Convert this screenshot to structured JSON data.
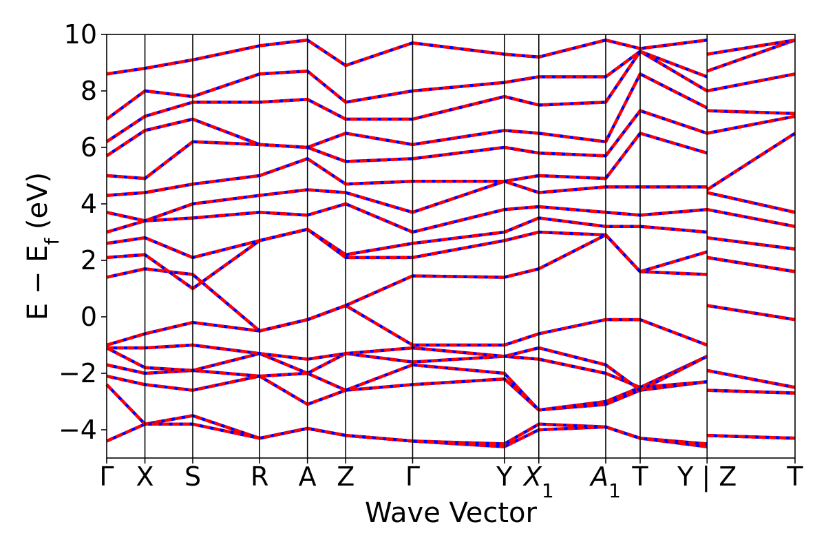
{
  "chart_data": {
    "type": "line",
    "title": "",
    "xlabel": "Wave Vector",
    "ylabel": "E − E",
    "ylabel_sub": "f",
    "ylabel_unit": " (eV)",
    "ylim": [
      -5,
      10
    ],
    "yticks": [
      -4,
      -2,
      0,
      2,
      4,
      6,
      8,
      10
    ],
    "ytick_labels": [
      "−4",
      "−2",
      "0",
      "2",
      "4",
      "6",
      "8",
      "10"
    ],
    "xlim": [
      0,
      18
    ],
    "grid": false,
    "legend": "none",
    "line_colors": {
      "primary": "#0000ff",
      "overlay": "#ff0000"
    },
    "kpoints": [
      {
        "x": 0.0,
        "label": "Γ",
        "italic": false,
        "sub": ""
      },
      {
        "x": 1.0,
        "label": "X",
        "italic": false,
        "sub": ""
      },
      {
        "x": 2.25,
        "label": "S",
        "italic": false,
        "sub": ""
      },
      {
        "x": 4.0,
        "label": "R",
        "italic": false,
        "sub": ""
      },
      {
        "x": 5.25,
        "label": "A",
        "italic": false,
        "sub": ""
      },
      {
        "x": 6.25,
        "label": "Z",
        "italic": false,
        "sub": ""
      },
      {
        "x": 8.0,
        "label": "Γ",
        "italic": false,
        "sub": ""
      },
      {
        "x": 10.4,
        "label": "Y",
        "italic": false,
        "sub": ""
      },
      {
        "x": 11.3,
        "label": "X",
        "italic": true,
        "sub": "1"
      },
      {
        "x": 13.05,
        "label": "A",
        "italic": true,
        "sub": "1"
      },
      {
        "x": 13.95,
        "label": "T",
        "italic": false,
        "sub": ""
      },
      {
        "x": 15.7,
        "label": "Y | Z",
        "italic": false,
        "sub": ""
      },
      {
        "x": 18.0,
        "label": "T",
        "italic": false,
        "sub": ""
      }
    ],
    "x": [
      0.0,
      1.0,
      2.25,
      4.0,
      5.25,
      6.25,
      8.0,
      10.4,
      11.3,
      13.05,
      13.95,
      15.7,
      15.7001,
      18.0
    ],
    "series": [
      {
        "values": [
          -4.4,
          -3.8,
          -3.5,
          -4.3,
          -3.95,
          -4.2,
          -4.4,
          -4.6,
          -4.0,
          -3.9,
          -4.3,
          -4.6,
          -4.2,
          -4.3
        ]
      },
      {
        "values": [
          -2.4,
          -3.8,
          -3.8,
          -4.3,
          -3.95,
          -4.2,
          -4.4,
          -4.5,
          -3.8,
          -3.9,
          -4.3,
          -4.5,
          -4.2,
          -4.3
        ]
      },
      {
        "values": [
          -2.1,
          -2.4,
          -2.6,
          -2.1,
          -3.1,
          -2.6,
          -2.4,
          -2.2,
          -3.3,
          -3.1,
          -2.6,
          -2.3,
          -2.6,
          -2.7
        ]
      },
      {
        "values": [
          -1.7,
          -2.0,
          -1.9,
          -2.1,
          -2.0,
          -2.6,
          -1.7,
          -2.0,
          -3.3,
          -3.0,
          -2.5,
          -2.3,
          -2.6,
          -2.7
        ]
      },
      {
        "values": [
          -1.1,
          -1.8,
          -1.9,
          -1.3,
          -2.0,
          -1.3,
          -1.6,
          -1.4,
          -1.5,
          -2.0,
          -2.5,
          -1.4,
          -1.9,
          -2.5
        ]
      },
      {
        "values": [
          -1.1,
          -1.1,
          -1.0,
          -1.3,
          -1.5,
          -1.3,
          -1.1,
          -1.4,
          -1.1,
          -1.7,
          -2.6,
          -1.4,
          -1.9,
          -2.5
        ]
      },
      {
        "values": [
          -1.0,
          -0.6,
          -0.2,
          -0.5,
          -0.1,
          0.4,
          -1.0,
          -1.0,
          -0.6,
          -0.1,
          -0.1,
          -1.0,
          0.4,
          -0.1
        ]
      },
      {
        "values": [
          1.4,
          1.7,
          1.5,
          -0.5,
          -0.1,
          0.4,
          1.45,
          1.4,
          1.7,
          2.9,
          1.6,
          1.5,
          2.1,
          1.6
        ]
      },
      {
        "values": [
          2.1,
          2.2,
          1.0,
          2.7,
          3.1,
          2.1,
          2.1,
          2.7,
          3.0,
          2.9,
          1.6,
          2.3,
          2.1,
          1.6
        ]
      },
      {
        "values": [
          2.6,
          2.8,
          2.1,
          2.7,
          3.1,
          2.2,
          2.6,
          3.0,
          3.5,
          3.2,
          3.2,
          3.0,
          2.8,
          2.4
        ]
      },
      {
        "values": [
          3.0,
          3.4,
          3.5,
          3.7,
          3.6,
          4.0,
          3.0,
          3.8,
          3.9,
          3.7,
          3.6,
          3.8,
          3.8,
          3.2
        ]
      },
      {
        "values": [
          3.7,
          3.4,
          4.0,
          4.3,
          4.5,
          4.4,
          3.7,
          4.8,
          4.4,
          4.6,
          4.6,
          4.6,
          4.4,
          3.7
        ]
      },
      {
        "values": [
          4.3,
          4.4,
          4.7,
          5.0,
          5.6,
          4.7,
          4.8,
          4.8,
          5.0,
          4.9,
          6.5,
          5.8,
          4.5,
          6.5
        ]
      },
      {
        "values": [
          5.0,
          4.9,
          6.2,
          6.1,
          6.0,
          5.5,
          5.6,
          6.0,
          5.8,
          5.7,
          7.3,
          6.5,
          6.5,
          7.1
        ]
      },
      {
        "values": [
          5.7,
          6.6,
          7.0,
          6.1,
          6.0,
          6.5,
          6.1,
          6.6,
          6.5,
          6.2,
          8.6,
          7.4,
          7.3,
          7.2
        ]
      },
      {
        "values": [
          6.2,
          7.1,
          7.6,
          7.6,
          7.7,
          7.0,
          7.0,
          7.8,
          7.5,
          7.6,
          9.4,
          8.0,
          8.0,
          8.6
        ]
      },
      {
        "values": [
          7.0,
          8.0,
          7.8,
          8.6,
          8.7,
          7.6,
          8.0,
          8.3,
          8.5,
          8.5,
          9.4,
          8.5,
          8.7,
          9.8
        ]
      },
      {
        "values": [
          8.6,
          8.8,
          9.1,
          9.6,
          9.8,
          8.9,
          9.7,
          9.3,
          9.2,
          9.8,
          9.5,
          9.8,
          9.3,
          9.8
        ]
      }
    ]
  }
}
